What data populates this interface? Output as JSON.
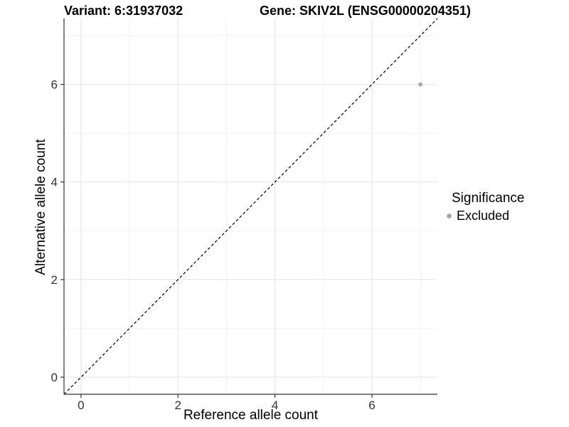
{
  "chart_data": {
    "type": "scatter",
    "title_left": "Variant: 6:31937032",
    "title_right": "Gene: SKIV2L (ENSG00000204351)",
    "xlabel": "Reference allele count",
    "ylabel": "Alternative allele count",
    "xlim": [
      -0.35,
      7.35
    ],
    "ylim": [
      -0.35,
      7.35
    ],
    "x_ticks": [
      0,
      2,
      4,
      6
    ],
    "y_ticks": [
      0,
      2,
      4,
      6
    ],
    "x_minor_grid": [
      1,
      3,
      5,
      7
    ],
    "y_minor_grid": [
      1,
      3,
      5,
      7
    ],
    "grid": "major and minor gridlines, light gray on white panel",
    "legend_position": "right",
    "series": [
      {
        "name": "Excluded",
        "color": "#aaaaaa",
        "points": [
          {
            "x": 7,
            "y": 6
          }
        ]
      }
    ],
    "reference_line": {
      "kind": "identity y = x",
      "style": "dashed",
      "color": "#000000",
      "from": [
        -0.35,
        -0.35
      ],
      "to": [
        7.35,
        7.35
      ]
    },
    "legend": {
      "title": "Significance",
      "entries": [
        {
          "label": "Excluded",
          "color": "#aaaaaa"
        }
      ]
    }
  },
  "colors": {
    "background": "#ffffff",
    "grid_major": "#e4e4e4",
    "grid_minor": "#f2f2f2",
    "axis_line": "#333333",
    "tick_text": "#333333",
    "point": "#aaaaaa"
  }
}
